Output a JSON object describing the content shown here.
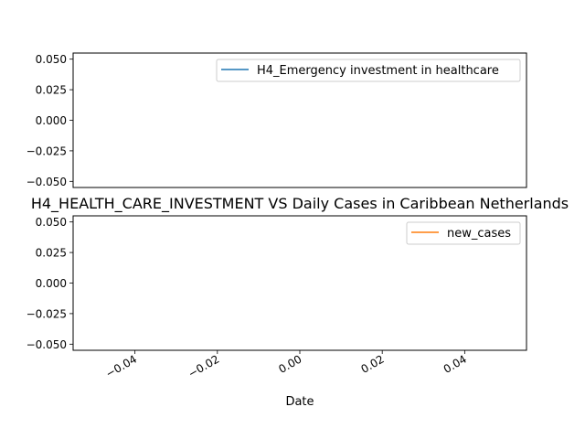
{
  "chart_data": [
    {
      "type": "line",
      "title": "",
      "xlabel": "",
      "ylabel": "",
      "series": [
        {
          "name": "H4_Emergency investment in healthcare",
          "color": "#1f77b4",
          "x": [],
          "y": []
        }
      ],
      "ylim": [
        -0.055,
        0.055
      ],
      "yticks": [
        0.05,
        0.025,
        0.0,
        -0.025,
        -0.05
      ],
      "ytick_labels": [
        "0.050",
        "0.025",
        "0.000",
        "−0.025",
        "−0.050"
      ],
      "x_tick_labels_visible": false,
      "legend": "top-right",
      "grid": false
    },
    {
      "type": "line",
      "title": "H4_HEALTH_CARE_INVESTMENT VS Daily Cases in Caribbean Netherlands",
      "xlabel": "Date",
      "ylabel": "",
      "series": [
        {
          "name": "new_cases",
          "color": "#ff7f0e",
          "x": [],
          "y": []
        }
      ],
      "xlim": [
        -0.055,
        0.055
      ],
      "xticks": [
        -0.04,
        -0.02,
        0.0,
        0.02,
        0.04
      ],
      "xtick_labels": [
        "−0.04",
        "−0.02",
        "0.00",
        "0.02",
        "0.04"
      ],
      "ylim": [
        -0.055,
        0.055
      ],
      "yticks": [
        0.05,
        0.025,
        0.0,
        -0.025,
        -0.05
      ],
      "ytick_labels": [
        "0.050",
        "0.025",
        "0.000",
        "−0.025",
        "−0.050"
      ],
      "legend": "top-right",
      "grid": false
    }
  ]
}
